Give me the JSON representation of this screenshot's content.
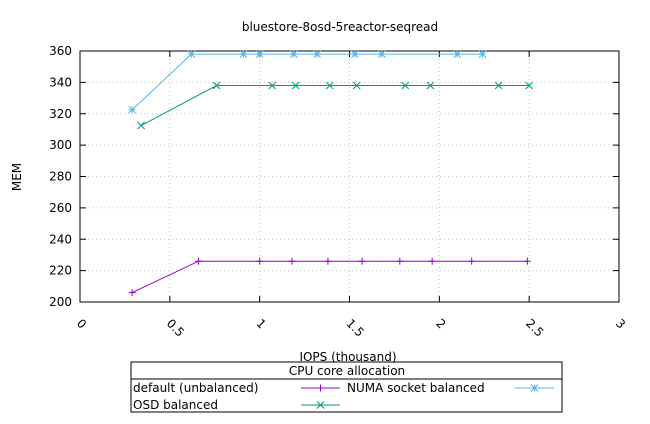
{
  "chart_data": {
    "type": "line",
    "title": "bluestore-8osd-5reactor-seqread",
    "xlabel": "IOPS (thousand)",
    "ylabel": "MEM",
    "xlim": [
      0,
      3
    ],
    "ylim": [
      200,
      360
    ],
    "xticks": [
      "0",
      "0.5",
      "1",
      "1.5",
      "2",
      "2.5",
      "3"
    ],
    "yticks": [
      "200",
      "220",
      "240",
      "260",
      "280",
      "300",
      "320",
      "340",
      "360"
    ],
    "grid": true,
    "legend": {
      "title": "CPU core allocation",
      "placement": "bottom"
    },
    "series": [
      {
        "name": "default (unbalanced)",
        "color": "#9400d3",
        "marker": "plus",
        "x": [
          0.29,
          0.66,
          1.0,
          1.18,
          1.38,
          1.57,
          1.78,
          1.96,
          2.18,
          2.49
        ],
        "y": [
          206,
          226,
          226,
          226,
          226,
          226,
          226,
          226,
          226,
          226
        ]
      },
      {
        "name": "NUMA socket balanced",
        "color": "#56b4e9",
        "marker": "star",
        "x": [
          0.29,
          0.62,
          0.91,
          1.0,
          1.19,
          1.32,
          1.53,
          1.68,
          2.1,
          2.24
        ],
        "y": [
          322.5,
          358,
          358,
          358,
          358,
          358,
          358,
          358,
          358,
          358
        ]
      },
      {
        "name": "OSD balanced",
        "color": "#009e73",
        "marker": "x",
        "x": [
          0.34,
          0.76,
          1.07,
          1.2,
          1.39,
          1.54,
          1.81,
          1.95,
          2.33,
          2.5
        ],
        "y": [
          312.5,
          338,
          338,
          338,
          338,
          338,
          338,
          338,
          338,
          338
        ]
      }
    ]
  }
}
